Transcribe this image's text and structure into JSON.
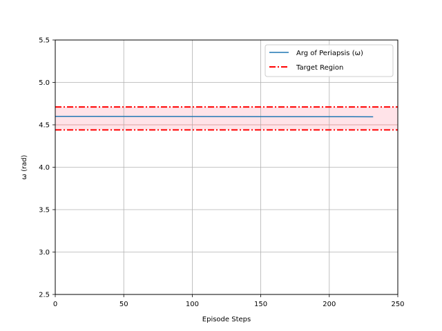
{
  "chart_data": {
    "type": "line",
    "title": "",
    "xlabel": "Episode Steps",
    "ylabel": "ω (rad)",
    "xlim": [
      0,
      250
    ],
    "ylim": [
      2.5,
      5.5
    ],
    "xticks": [
      0,
      50,
      100,
      150,
      200,
      250
    ],
    "yticks": [
      2.5,
      3.0,
      3.5,
      4.0,
      4.5,
      5.0,
      5.5
    ],
    "xtick_labels": [
      "0",
      "50",
      "100",
      "150",
      "200",
      "250"
    ],
    "ytick_labels": [
      "2.5",
      "3.0",
      "3.5",
      "4.0",
      "4.5",
      "5.0",
      "5.5"
    ],
    "grid": true,
    "legend_position": "top-right",
    "series": [
      {
        "name": "Arg of Periapsis (ω)",
        "color": "#1f77b4",
        "x": [
          0,
          232
        ],
        "y": [
          4.6,
          4.595
        ]
      }
    ],
    "target_region": {
      "name": "Target Region",
      "color": "#ff0000",
      "fill_color": "#ffc0cb",
      "lower": 4.44,
      "center": 4.5,
      "upper": 4.71
    }
  }
}
